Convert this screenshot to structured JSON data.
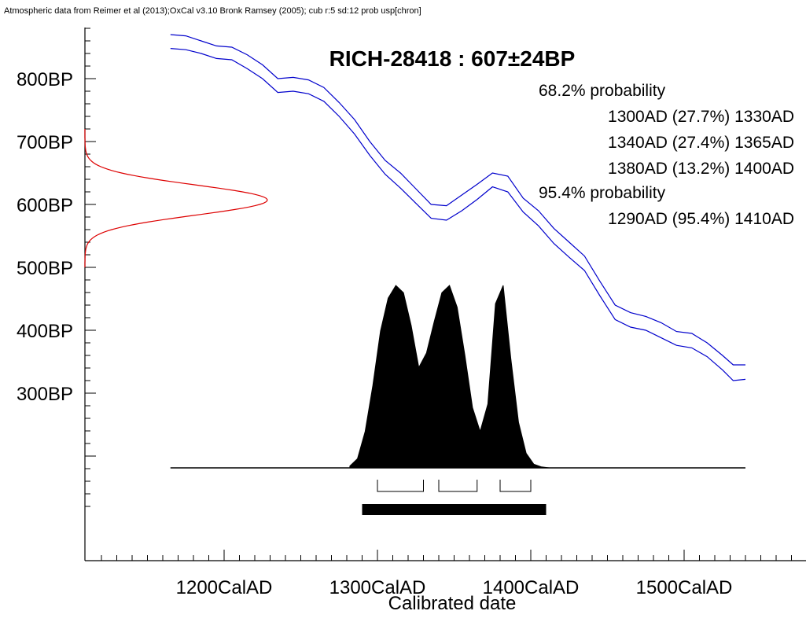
{
  "chart_data": {
    "type": "area",
    "header": "Atmospheric data from Reimer et al (2013);OxCal v3.10 Bronk Ramsey (2005); cub r:5 sd:12 prob usp[chron]",
    "title": "RICH-28418 : 607±24BP",
    "xlabel": "Calibrated date",
    "ylabel": "",
    "x_ticks": [
      "1200CalAD",
      "1300CalAD",
      "1400CalAD",
      "1500CalAD"
    ],
    "y_ticks": [
      "300BP",
      "400BP",
      "500BP",
      "600BP",
      "700BP",
      "800BP"
    ],
    "xlim": [
      1110,
      1580
    ],
    "ylim": [
      110,
      890
    ],
    "probability_text": [
      "68.2% probability",
      "1300AD (27.7%) 1330AD",
      "1340AD (27.4%) 1365AD",
      "1380AD (13.2%) 1400AD",
      "95.4% probability",
      "1290AD (95.4%) 1410AD"
    ],
    "radiocarbon_date": {
      "mean": 607,
      "sigma": 24
    },
    "calibration_curve": {
      "color": "#0000cc",
      "x": [
        1165,
        1175,
        1185,
        1195,
        1205,
        1215,
        1225,
        1235,
        1245,
        1255,
        1265,
        1275,
        1285,
        1295,
        1305,
        1315,
        1325,
        1335,
        1345,
        1355,
        1365,
        1375,
        1385,
        1395,
        1405,
        1415,
        1425,
        1435,
        1445,
        1455,
        1465,
        1475,
        1485,
        1495,
        1505,
        1515,
        1525,
        1532,
        1540
      ],
      "upper": [
        870,
        868,
        860,
        852,
        850,
        838,
        822,
        800,
        802,
        798,
        786,
        762,
        735,
        700,
        670,
        650,
        625,
        600,
        598,
        615,
        632,
        650,
        645,
        610,
        590,
        562,
        540,
        518,
        478,
        440,
        428,
        422,
        412,
        398,
        395,
        380,
        360,
        345,
        345
      ],
      "lower": [
        848,
        846,
        840,
        832,
        830,
        816,
        800,
        778,
        780,
        776,
        764,
        740,
        712,
        678,
        648,
        626,
        602,
        578,
        575,
        590,
        608,
        628,
        620,
        588,
        566,
        538,
        516,
        495,
        455,
        417,
        405,
        400,
        388,
        376,
        372,
        358,
        337,
        320,
        322
      ]
    },
    "probability_distribution": {
      "color": "#000000",
      "x": [
        1282,
        1287,
        1292,
        1297,
        1302,
        1307,
        1312,
        1317,
        1322,
        1327,
        1332,
        1337,
        1342,
        1347,
        1352,
        1357,
        1362,
        1367,
        1372,
        1377,
        1382,
        1387,
        1392,
        1397,
        1402,
        1407,
        1412
      ],
      "y": [
        0.01,
        0.05,
        0.2,
        0.45,
        0.75,
        0.93,
        1.0,
        0.96,
        0.78,
        0.55,
        0.63,
        0.8,
        0.96,
        1.0,
        0.88,
        0.62,
        0.33,
        0.2,
        0.35,
        0.9,
        1.0,
        0.6,
        0.25,
        0.08,
        0.02,
        0.005,
        0.0
      ],
      "baseline_x": [
        1165,
        1540
      ]
    },
    "range_68": [
      [
        1300,
        1330
      ],
      [
        1340,
        1365
      ],
      [
        1380,
        1400
      ]
    ],
    "range_95": [
      [
        1290,
        1410
      ]
    ]
  }
}
